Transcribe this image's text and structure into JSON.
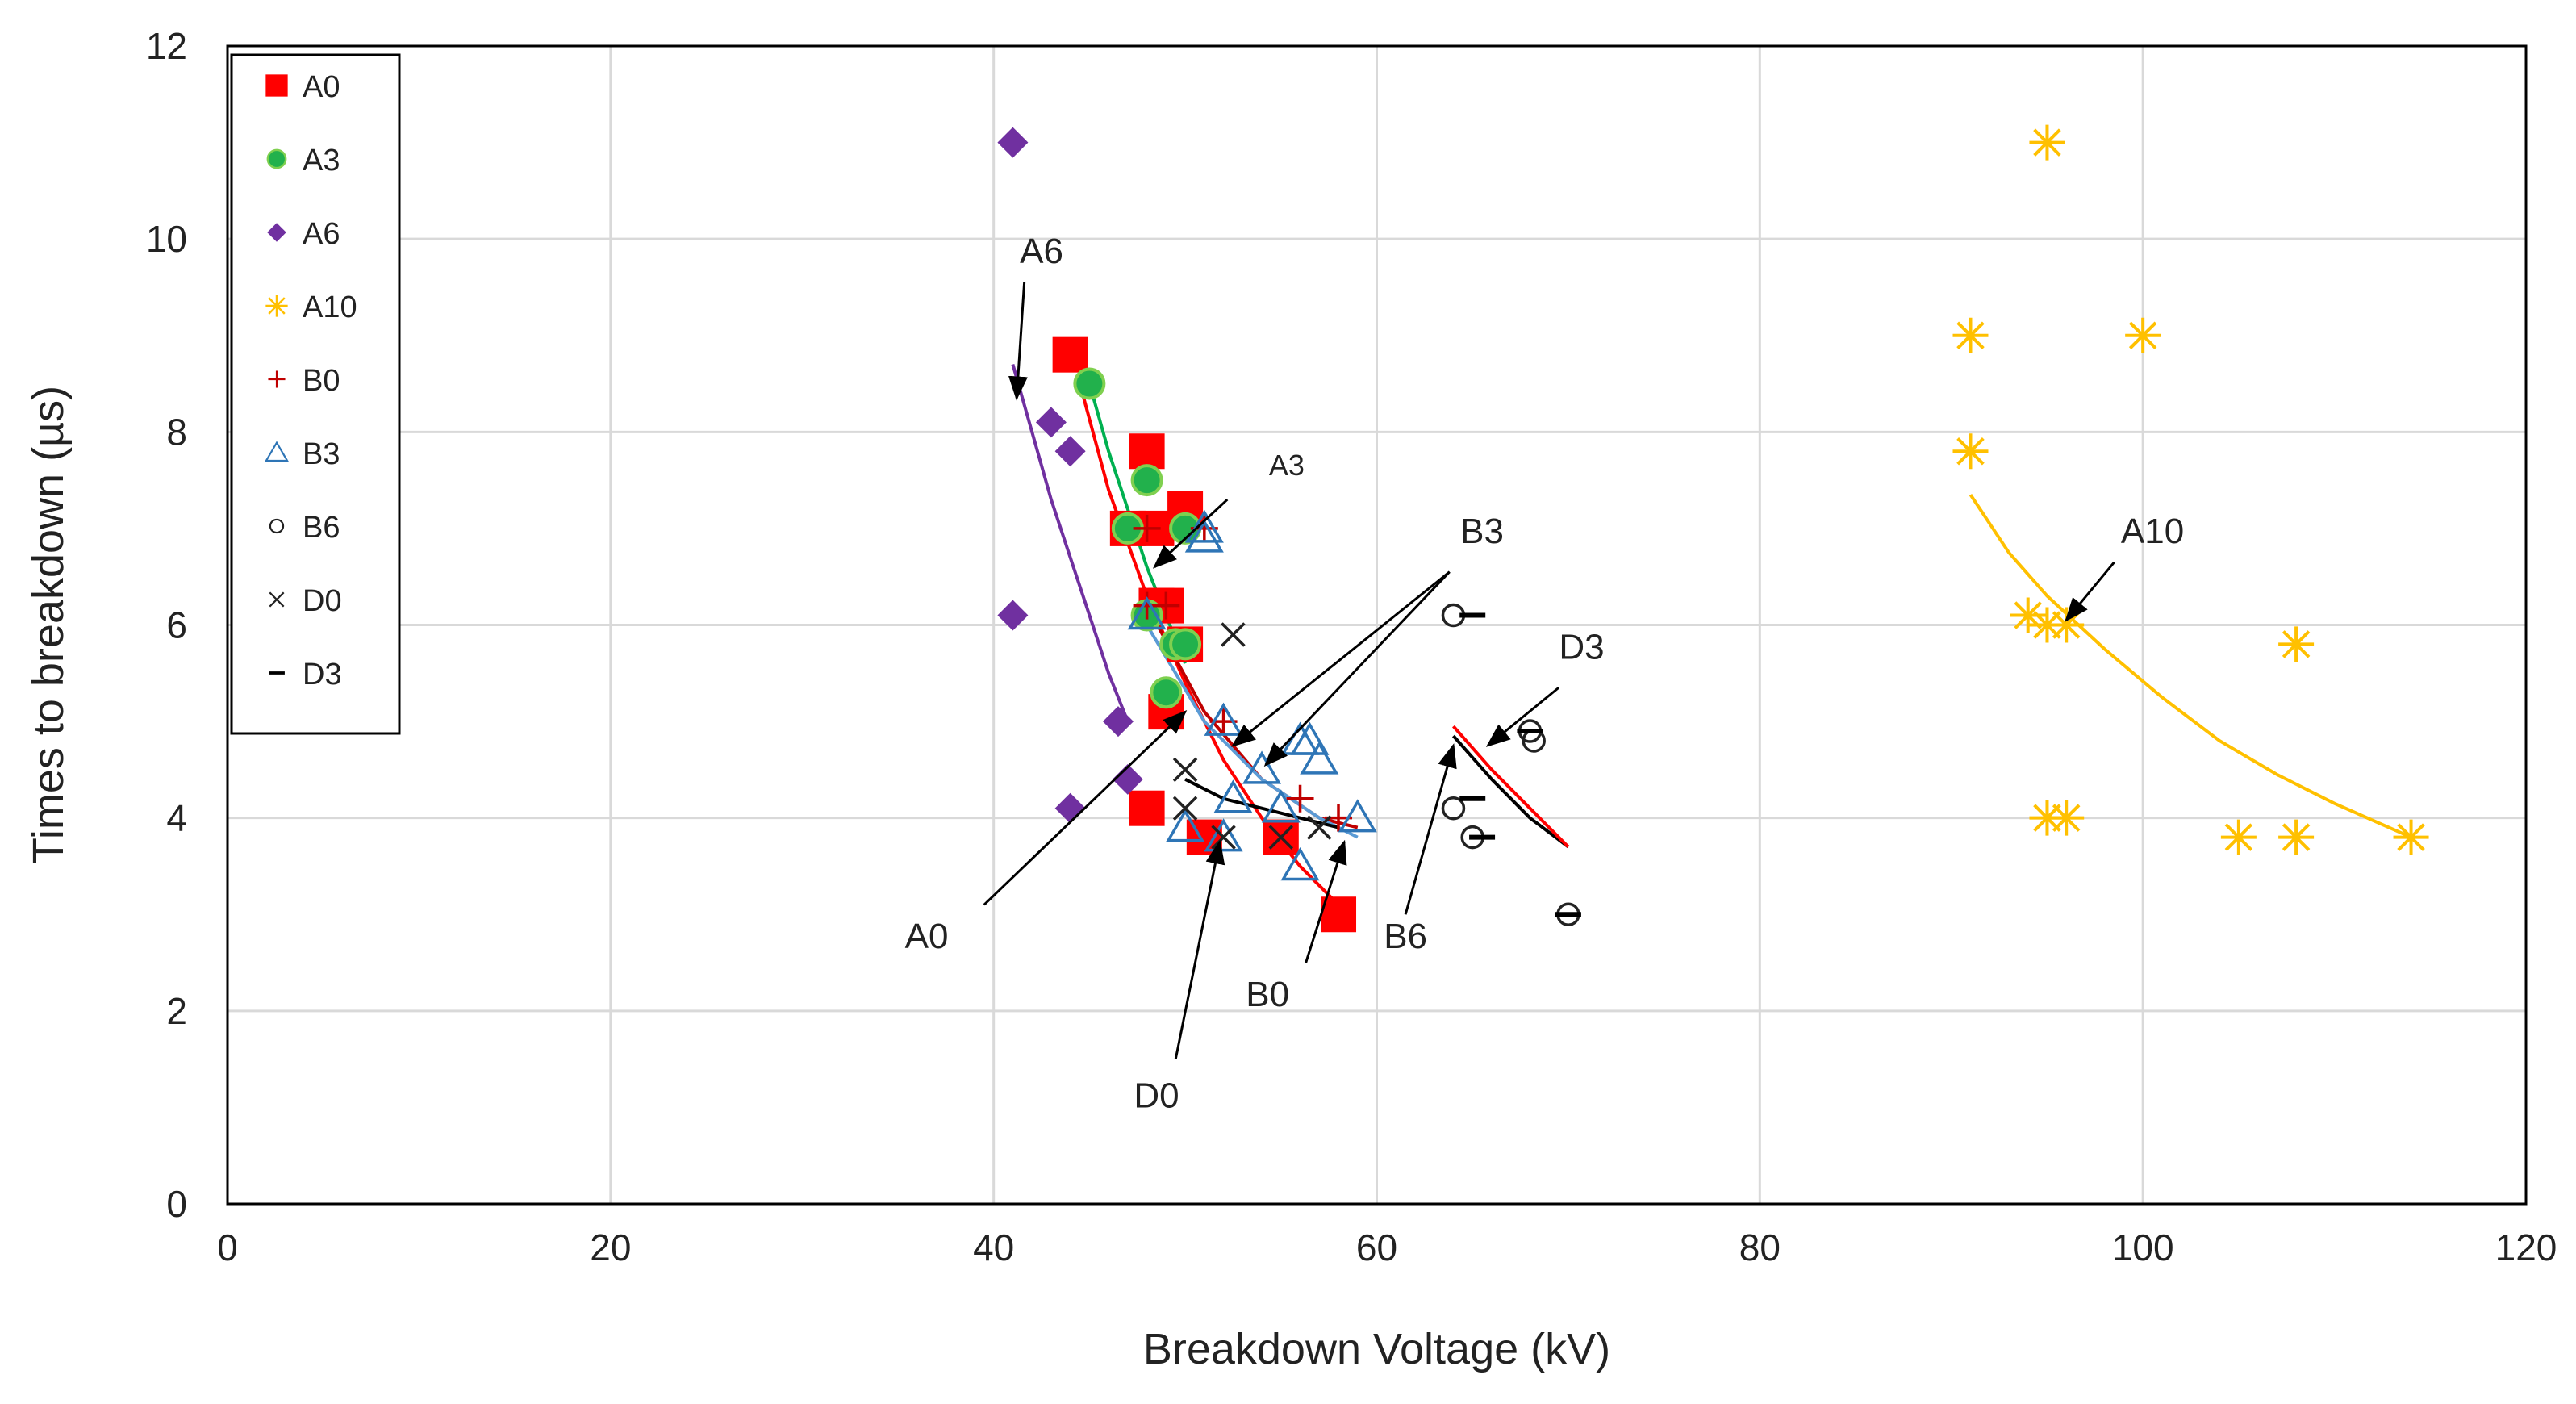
{
  "chart_data": {
    "type": "scatter",
    "title": "",
    "xlabel": "Breakdown Voltage (kV)",
    "ylabel": "Times to breakdown (µs)",
    "xlim": [
      0,
      120
    ],
    "ylim": [
      0,
      12
    ],
    "xticks": [
      0,
      20,
      40,
      60,
      80,
      100,
      120
    ],
    "yticks": [
      0,
      2,
      4,
      6,
      8,
      10,
      12
    ],
    "grid": true,
    "legend_position": "top-left",
    "series": [
      {
        "name": "A0",
        "marker": "square",
        "color": "#ff0000",
        "points": [
          [
            44,
            8.8
          ],
          [
            48,
            7.8
          ],
          [
            47,
            7
          ],
          [
            48.5,
            7
          ],
          [
            50,
            7.2
          ],
          [
            48.5,
            6.2
          ],
          [
            49,
            6.2
          ],
          [
            50,
            5.8
          ],
          [
            49,
            5.1
          ],
          [
            48,
            4.1
          ],
          [
            51,
            3.8
          ],
          [
            55,
            3.8
          ],
          [
            58,
            3
          ]
        ]
      },
      {
        "name": "A3",
        "marker": "circle",
        "color": "#22b14c",
        "edge": "#7fd04f",
        "points": [
          [
            45,
            8.5
          ],
          [
            48,
            7.5
          ],
          [
            47,
            7
          ],
          [
            50,
            7
          ],
          [
            48,
            6.1
          ],
          [
            49.5,
            5.8
          ],
          [
            50,
            5.8
          ],
          [
            49,
            5.3
          ]
        ]
      },
      {
        "name": "A6",
        "marker": "diamond",
        "color": "#7030a0",
        "points": [
          [
            41,
            11
          ],
          [
            43,
            8.1
          ],
          [
            44,
            7.8
          ],
          [
            41,
            6.1
          ],
          [
            46.5,
            5
          ],
          [
            47,
            4.4
          ],
          [
            44,
            4.1
          ]
        ]
      },
      {
        "name": "A10",
        "marker": "asterisk",
        "color": "#ffc000",
        "points": [
          [
            95,
            11
          ],
          [
            91,
            9
          ],
          [
            100,
            9
          ],
          [
            91,
            7.8
          ],
          [
            94,
            6.1
          ],
          [
            95,
            6
          ],
          [
            96,
            6
          ],
          [
            108,
            5.8
          ],
          [
            95,
            4
          ],
          [
            96,
            4
          ],
          [
            105,
            3.8
          ],
          [
            108,
            3.8
          ],
          [
            114,
            3.8
          ]
        ]
      },
      {
        "name": "B0",
        "marker": "plus",
        "color": "#c00000",
        "points": [
          [
            48,
            7
          ],
          [
            51,
            7
          ],
          [
            48,
            6.2
          ],
          [
            49,
            6.2
          ],
          [
            52,
            5
          ],
          [
            56,
            4.2
          ],
          [
            58,
            4
          ]
        ]
      },
      {
        "name": "B3",
        "marker": "triangle",
        "color": "#2e75b6",
        "points": [
          [
            51,
            7
          ],
          [
            51,
            6.9
          ],
          [
            48,
            6.1
          ],
          [
            52,
            5
          ],
          [
            56,
            4.8
          ],
          [
            56.5,
            4.8
          ],
          [
            57,
            4.6
          ],
          [
            54,
            4.5
          ],
          [
            52.5,
            4.2
          ],
          [
            55,
            4.1
          ],
          [
            59,
            4
          ],
          [
            50,
            3.9
          ],
          [
            52,
            3.8
          ],
          [
            56,
            3.5
          ]
        ]
      },
      {
        "name": "B6",
        "marker": "circle-open",
        "color": "#222222",
        "points": [
          [
            64,
            6.1
          ],
          [
            68,
            4.9
          ],
          [
            68.2,
            4.8
          ],
          [
            64,
            4.1
          ],
          [
            65,
            3.8
          ],
          [
            70,
            3
          ]
        ]
      },
      {
        "name": "D0",
        "marker": "x",
        "color": "#222222",
        "points": [
          [
            52.5,
            5.9
          ],
          [
            50,
            4.5
          ],
          [
            50,
            4.1
          ],
          [
            52,
            3.8
          ],
          [
            55,
            3.8
          ],
          [
            57,
            3.9
          ]
        ]
      },
      {
        "name": "D3",
        "marker": "dash",
        "color": "#000000",
        "points": [
          [
            65,
            6.1
          ],
          [
            65,
            4.2
          ],
          [
            65.5,
            3.8
          ],
          [
            68,
            4.9
          ],
          [
            70,
            3
          ]
        ]
      }
    ],
    "trendlines": [
      {
        "series": "A6",
        "color": "#7030a0",
        "points": [
          [
            41,
            8.7
          ],
          [
            42,
            8
          ],
          [
            43,
            7.3
          ],
          [
            44,
            6.7
          ],
          [
            45,
            6.1
          ],
          [
            46,
            5.5
          ],
          [
            47,
            5
          ]
        ]
      },
      {
        "series": "A3",
        "color": "#00b050",
        "points": [
          [
            45,
            8.5
          ],
          [
            46,
            7.8
          ],
          [
            47,
            7.2
          ],
          [
            48,
            6.6
          ],
          [
            49,
            6.1
          ],
          [
            50,
            5.6
          ]
        ]
      },
      {
        "series": "A0",
        "color": "#ff0000",
        "points": [
          [
            44.5,
            8.5
          ],
          [
            46,
            7.4
          ],
          [
            48,
            6.3
          ],
          [
            50,
            5.4
          ],
          [
            52,
            4.6
          ],
          [
            54,
            4
          ],
          [
            56,
            3.5
          ],
          [
            58,
            3.1
          ]
        ]
      },
      {
        "series": "B0",
        "color": "#c00000",
        "points": [
          [
            48,
            6.2
          ],
          [
            51,
            5.1
          ],
          [
            54,
            4.4
          ],
          [
            57,
            4
          ],
          [
            59,
            3.9
          ]
        ]
      },
      {
        "series": "B3",
        "color": "#5b9bd5",
        "points": [
          [
            48,
            6
          ],
          [
            51,
            5
          ],
          [
            54,
            4.4
          ],
          [
            57,
            4
          ],
          [
            59,
            3.8
          ]
        ]
      },
      {
        "series": "D0",
        "color": "#000000",
        "points": [
          [
            50,
            4.4
          ],
          [
            52,
            4.2
          ],
          [
            54,
            4.1
          ],
          [
            56,
            4
          ],
          [
            58,
            3.9
          ]
        ]
      },
      {
        "series": "D3",
        "color": "#000000",
        "points": [
          [
            64,
            4.85
          ],
          [
            66,
            4.4
          ],
          [
            68,
            4
          ],
          [
            70,
            3.7
          ]
        ]
      },
      {
        "series": "B6",
        "color": "#ff0000",
        "points": [
          [
            64,
            4.95
          ],
          [
            66,
            4.5
          ],
          [
            68,
            4.1
          ],
          [
            70,
            3.7
          ]
        ]
      },
      {
        "series": "A10",
        "color": "#ffc000",
        "points": [
          [
            91,
            7.35
          ],
          [
            93,
            6.75
          ],
          [
            95,
            6.3
          ],
          [
            98,
            5.75
          ],
          [
            101,
            5.25
          ],
          [
            104,
            4.8
          ],
          [
            107,
            4.45
          ],
          [
            110,
            4.15
          ],
          [
            114,
            3.8
          ]
        ]
      }
    ],
    "annotations": [
      {
        "text": "A6",
        "label_at": [
          42.5,
          9.75
        ],
        "arrow_from": [
          41.6,
          9.55
        ],
        "arrow_to": [
          41.2,
          8.35
        ],
        "size": "normal"
      },
      {
        "text": "A3",
        "label_at": [
          55.3,
          7.55
        ],
        "arrow_from": [
          52.2,
          7.3
        ],
        "arrow_to": [
          48.4,
          6.6
        ],
        "size": "small"
      },
      {
        "text": "B3",
        "label_at": [
          65.5,
          6.85
        ],
        "arrow_from": [
          63.8,
          6.55
        ],
        "arrow_to": [
          52.5,
          4.75
        ],
        "size": "normal"
      },
      {
        "text": "B3",
        "label_at": null,
        "arrow_from": [
          63.8,
          6.55
        ],
        "arrow_to": [
          54.2,
          4.55
        ],
        "size": "normal"
      },
      {
        "text": "A10",
        "label_at": [
          100.5,
          6.85
        ],
        "arrow_from": [
          98.5,
          6.65
        ],
        "arrow_to": [
          96,
          6.05
        ],
        "size": "normal"
      },
      {
        "text": "D3",
        "label_at": [
          70.7,
          5.65
        ],
        "arrow_from": [
          69.5,
          5.35
        ],
        "arrow_to": [
          65.8,
          4.75
        ],
        "size": "normal"
      },
      {
        "text": "A0",
        "label_at": [
          36.5,
          2.65
        ],
        "arrow_from": [
          39.5,
          3.1
        ],
        "arrow_to": [
          50,
          5.1
        ],
        "size": "normal"
      },
      {
        "text": "D0",
        "label_at": [
          48.5,
          1.0
        ],
        "arrow_from": [
          49.5,
          1.5
        ],
        "arrow_to": [
          51.8,
          3.75
        ],
        "size": "normal"
      },
      {
        "text": "B0",
        "label_at": [
          54.3,
          2.05
        ],
        "arrow_from": [
          56.3,
          2.5
        ],
        "arrow_to": [
          58.3,
          3.75
        ],
        "size": "normal"
      },
      {
        "text": "B6",
        "label_at": [
          61.5,
          2.65
        ],
        "arrow_from": [
          61.5,
          3.0
        ],
        "arrow_to": [
          64,
          4.75
        ],
        "size": "normal"
      }
    ]
  }
}
